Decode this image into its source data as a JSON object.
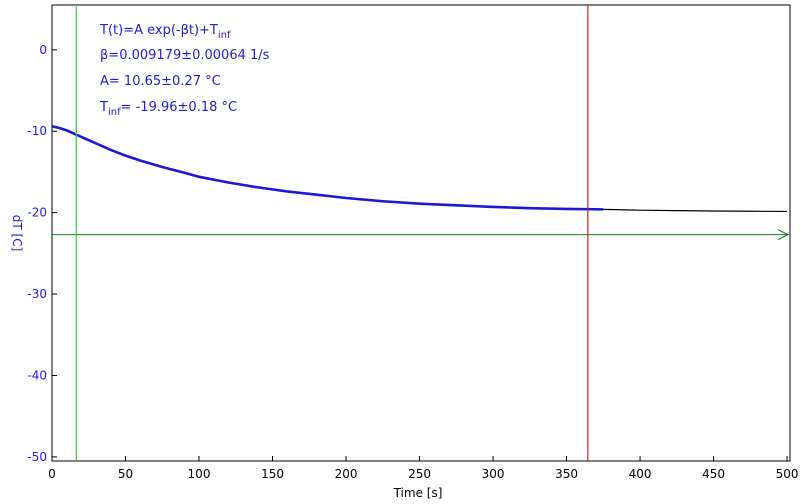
{
  "colors": {
    "axis": "#000000",
    "ytext": "#1f1fc8",
    "data": "#1a1ad2",
    "extrapolation": "#000000",
    "start_cursor": "#2ecc2e",
    "end_cursor": "#cc2222",
    "baseline": "#1a7a1a"
  },
  "chart_data": {
    "type": "line",
    "xlabel": "Time [s]",
    "ylabel": "dT [C]",
    "xlim": [
      0,
      502
    ],
    "ylim": [
      -50.5,
      5.5
    ],
    "xticks": [
      0,
      50,
      100,
      150,
      200,
      250,
      300,
      350,
      400,
      450,
      500
    ],
    "yticks": [
      0,
      -10,
      -20,
      -30,
      -40,
      -50
    ],
    "fit": {
      "A": 10.65,
      "beta": 0.009179,
      "T_inf": -19.96
    },
    "series": [
      {
        "x": [
          0,
          5,
          10,
          15,
          20,
          30,
          40,
          50,
          60,
          75,
          90,
          100,
          120,
          140,
          160,
          180,
          200,
          225,
          250,
          275,
          300,
          325,
          350,
          375
        ],
        "y": [
          -9.4,
          -9.6,
          -9.9,
          -10.3,
          -10.7,
          -11.5,
          -12.3,
          -13.0,
          -13.6,
          -14.4,
          -15.1,
          -15.6,
          -16.3,
          -16.9,
          -17.4,
          -17.8,
          -18.2,
          -18.6,
          -18.9,
          -19.1,
          -19.3,
          -19.45,
          -19.55,
          -19.6
        ]
      },
      {
        "x": [
          375,
          400,
          425,
          450,
          475,
          500
        ],
        "y": [
          -19.6,
          -19.7,
          -19.75,
          -19.8,
          -19.83,
          -19.85
        ]
      }
    ],
    "cursors": {
      "start_x": 16.5,
      "end_x": 364.5
    },
    "baseline_y": -22.7
  },
  "annotation": {
    "line1": "T(t)=A exp(-βt)+T",
    "line1_sub": "inf",
    "line2": "β=0.009179±0.00064 1/s",
    "line3": "A= 10.65±0.27 °C",
    "line4_pre": "T",
    "line4_sub": "inf",
    "line4_post": "= -19.96±0.18 °C"
  }
}
